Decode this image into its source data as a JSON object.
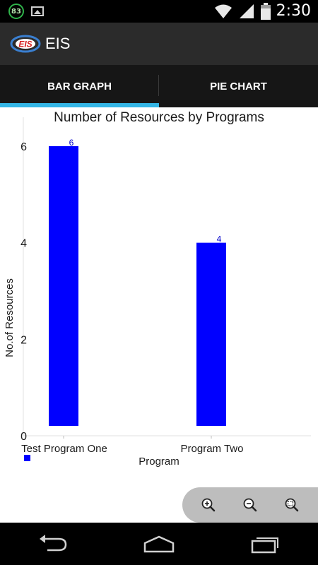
{
  "status_bar": {
    "battery_saver_level": "83",
    "time": "2:30",
    "icons": [
      "battery-saver-icon",
      "image-notification-icon",
      "wifi-icon",
      "signal-icon",
      "battery-icon"
    ]
  },
  "action_bar": {
    "logo_text": "EIS",
    "title": "EIS"
  },
  "tabs": [
    {
      "label": "BAR GRAPH",
      "selected": true
    },
    {
      "label": "PIE CHART",
      "selected": false
    }
  ],
  "chart_data": {
    "type": "bar",
    "title": "Number of Resources by Programs",
    "xlabel": "Program",
    "ylabel": "No.of Resources",
    "categories": [
      "Test Program One",
      "Program Two"
    ],
    "values": [
      6,
      4
    ],
    "data_labels": [
      "6",
      "4"
    ],
    "yticks": [
      "0",
      "2",
      "4",
      "6"
    ],
    "ylim": [
      0,
      6.6
    ],
    "bar_color": "#0000ff",
    "label_color": "#0000cc",
    "grid": false,
    "legend": {
      "placement": "bottom-left",
      "entries": [
        ""
      ]
    }
  },
  "zoom_controls": {
    "icons": [
      "zoom-in-icon",
      "zoom-out-icon",
      "zoom-reset-icon"
    ]
  },
  "nav_bar": {
    "icons": [
      "back-icon",
      "home-icon",
      "recent-apps-icon"
    ]
  },
  "colors": {
    "tab_indicator": "#33b5e5",
    "action_bar": "#2b2b2b",
    "tab_bar": "#161616"
  }
}
